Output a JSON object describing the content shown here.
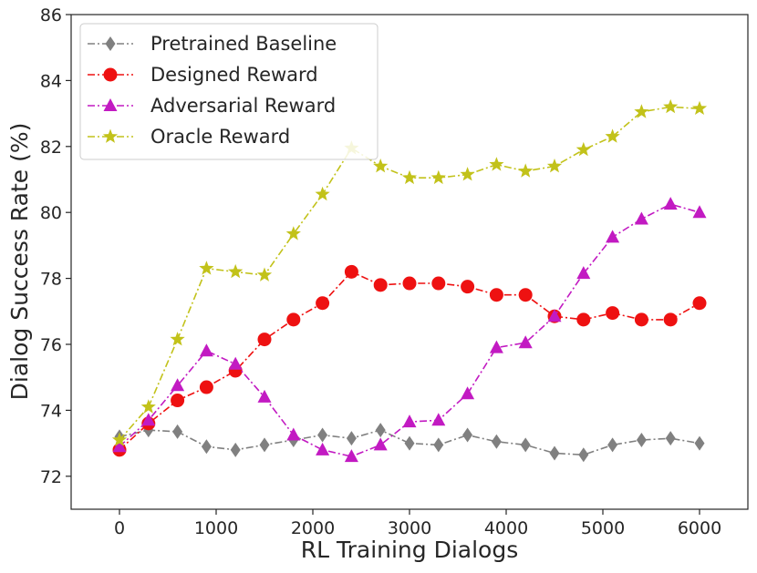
{
  "chart_data": {
    "type": "line",
    "title": "",
    "xlabel": "RL Training Dialogs",
    "ylabel": "Dialog Success Rate (%)",
    "xlim": [
      -500,
      6500
    ],
    "ylim": [
      71,
      86
    ],
    "xticks": [
      0,
      1000,
      2000,
      3000,
      4000,
      5000,
      6000
    ],
    "yticks": [
      72,
      74,
      76,
      78,
      80,
      82,
      84,
      86
    ],
    "legend_position": "top-left",
    "series": [
      {
        "name": "Pretrained Baseline",
        "color": "#808080",
        "marker": "diamond",
        "x": [
          0,
          300,
          600,
          900,
          1200,
          1500,
          1800,
          2100,
          2400,
          2700,
          3000,
          3300,
          3600,
          3900,
          4200,
          4500,
          4800,
          5100,
          5400,
          5700,
          6000
        ],
        "values": [
          73.2,
          73.4,
          73.35,
          72.9,
          72.8,
          72.95,
          73.1,
          73.25,
          73.15,
          73.4,
          73.0,
          72.95,
          73.25,
          73.05,
          72.95,
          72.7,
          72.65,
          72.95,
          73.1,
          73.15,
          73.0
        ]
      },
      {
        "name": "Designed Reward",
        "color": "#ee1111",
        "marker": "circle",
        "x": [
          0,
          300,
          600,
          900,
          1200,
          1500,
          1800,
          2100,
          2400,
          2700,
          3000,
          3300,
          3600,
          3900,
          4200,
          4500,
          4800,
          5100,
          5400,
          5700,
          6000
        ],
        "values": [
          72.8,
          73.6,
          74.3,
          74.7,
          75.2,
          76.15,
          76.75,
          77.25,
          78.2,
          77.8,
          77.85,
          77.85,
          77.75,
          77.5,
          77.5,
          76.85,
          76.75,
          76.95,
          76.75,
          76.75,
          77.25
        ]
      },
      {
        "name": "Adversarial Reward",
        "color": "#c21ac2",
        "marker": "triangle",
        "x": [
          0,
          300,
          600,
          900,
          1200,
          1500,
          1800,
          2100,
          2400,
          2700,
          3000,
          3300,
          3600,
          3900,
          4200,
          4500,
          4800,
          5100,
          5400,
          5700,
          6000
        ],
        "values": [
          72.9,
          73.7,
          74.75,
          75.8,
          75.4,
          74.4,
          73.25,
          72.8,
          72.6,
          72.95,
          73.65,
          73.7,
          74.5,
          75.9,
          76.05,
          76.85,
          78.15,
          79.25,
          79.8,
          80.25,
          80.0
        ]
      },
      {
        "name": "Oracle Reward",
        "color": "#c2c21a",
        "marker": "star",
        "x": [
          0,
          300,
          600,
          900,
          1200,
          1500,
          1800,
          2100,
          2400,
          2700,
          3000,
          3300,
          3600,
          3900,
          4200,
          4500,
          4800,
          5100,
          5400,
          5700,
          6000
        ],
        "values": [
          73.1,
          74.1,
          76.15,
          78.3,
          78.2,
          78.1,
          79.35,
          80.55,
          81.95,
          81.4,
          81.05,
          81.05,
          81.15,
          81.45,
          81.25,
          81.4,
          81.9,
          82.3,
          83.05,
          83.2,
          83.15
        ]
      }
    ]
  }
}
